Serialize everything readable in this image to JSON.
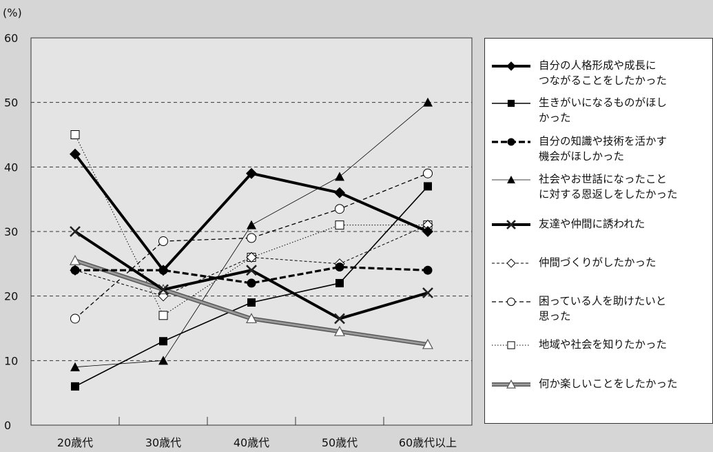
{
  "chart_data": {
    "type": "line",
    "unit_label": "(%)",
    "categories": [
      "20歳代",
      "30歳代",
      "40歳代",
      "50歳代",
      "60歳代以上"
    ],
    "ylim": [
      0,
      60
    ],
    "yticks": [
      0,
      10,
      20,
      30,
      40,
      50,
      60
    ],
    "grid": "dashed-horizontal",
    "legend_position": "right",
    "series": [
      {
        "name": "自分の人格形成や成長に\nつながることをしたかった",
        "values": [
          42,
          24,
          39,
          36,
          30
        ],
        "color": "#000000",
        "marker": "diamond-filled",
        "line": "solid-thick"
      },
      {
        "name": "生きがいになるものがほし\nかった",
        "values": [
          6,
          13,
          19,
          22,
          37
        ],
        "color": "#000000",
        "marker": "square-filled",
        "line": "solid"
      },
      {
        "name": "自分の知識や技術を活かす\n機会がほしかった",
        "values": [
          24,
          24,
          22,
          24.5,
          24
        ],
        "color": "#000000",
        "marker": "circle-filled",
        "line": "dashed-thick"
      },
      {
        "name": "社会やお世話になったこと\nに対する恩返しをしたかった",
        "values": [
          9,
          10,
          31,
          38.5,
          50
        ],
        "color": "#000000",
        "marker": "triangle-filled",
        "line": "thin"
      },
      {
        "name": "友達や仲間に誘われた",
        "values": [
          30,
          21,
          24,
          16.5,
          20.5
        ],
        "color": "#333333",
        "marker": "x",
        "line": "solid-thick"
      },
      {
        "name": "仲間づくりがしたかった",
        "values": [
          24,
          20,
          26,
          25,
          31
        ],
        "color": "#000000",
        "marker": "diamond-open",
        "line": "dashed-thin"
      },
      {
        "name": "困っている人を助けたいと\n思った",
        "values": [
          16.5,
          28.5,
          29,
          33.5,
          39
        ],
        "color": "#000000",
        "marker": "circle-open",
        "line": "dashed"
      },
      {
        "name": "地域や社会を知りたかった",
        "values": [
          45,
          17,
          26,
          31,
          31
        ],
        "color": "#000000",
        "marker": "square-open",
        "line": "dotted"
      },
      {
        "name": "何か楽しいことをしたかった",
        "values": [
          25.5,
          21,
          16.5,
          14.5,
          12.5
        ],
        "color": "#777777",
        "marker": "triangle-open",
        "line": "gray-thick"
      }
    ]
  }
}
